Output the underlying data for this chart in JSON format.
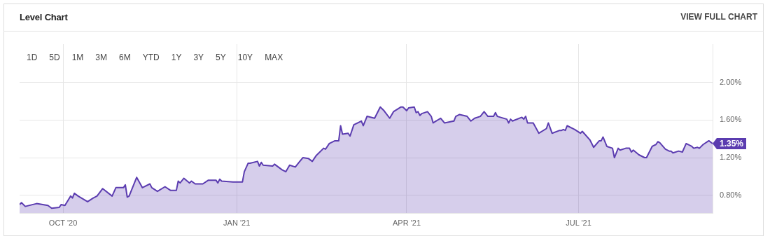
{
  "chart_data": {
    "type": "area",
    "title": "Level Chart",
    "annotations": [
      "VIEW FULL CHART",
      "1D",
      "5D",
      "1M",
      "3M",
      "6M",
      "YTD",
      "1Y",
      "3Y",
      "5Y",
      "10Y",
      "MAX",
      {
        "text": "1.35%",
        "x": "2021-09-10",
        "y": 1.35
      }
    ],
    "x": [
      "2020-09-08",
      "2020-09-09",
      "2020-09-11",
      "2020-09-17",
      "2020-09-23",
      "2020-09-25",
      "2020-09-29",
      "2020-09-30",
      "2020-10-02",
      "2020-10-05",
      "2020-10-06",
      "2020-10-07",
      "2020-10-09",
      "2020-10-14",
      "2020-10-17",
      "2020-10-19",
      "2020-10-22",
      "2020-10-27",
      "2020-10-29",
      "2020-11-02",
      "2020-11-03",
      "2020-11-04",
      "2020-11-05",
      "2020-11-09",
      "2020-11-12",
      "2020-11-16",
      "2020-11-17",
      "2020-11-20",
      "2020-11-24",
      "2020-11-27",
      "2020-11-30",
      "2020-12-01",
      "2020-12-02",
      "2020-12-04",
      "2020-12-07",
      "2020-12-08",
      "2020-12-10",
      "2020-12-14",
      "2020-12-17",
      "2020-12-21",
      "2020-12-22",
      "2020-12-23",
      "2020-12-24",
      "2020-12-30",
      "2021-01-04",
      "2021-01-05",
      "2021-01-07",
      "2021-01-08",
      "2021-01-12",
      "2021-01-13",
      "2021-01-14",
      "2021-01-15",
      "2021-01-20",
      "2021-01-21",
      "2021-01-25",
      "2021-01-27",
      "2021-01-29",
      "2021-02-01",
      "2021-02-03",
      "2021-02-05",
      "2021-02-08",
      "2021-02-10",
      "2021-02-12",
      "2021-02-16",
      "2021-02-17",
      "2021-02-19",
      "2021-02-22",
      "2021-02-24",
      "2021-02-25",
      "2021-02-26",
      "2021-03-01",
      "2021-03-02",
      "2021-03-04",
      "2021-03-08",
      "2021-03-09",
      "2021-03-11",
      "2021-03-15",
      "2021-03-18",
      "2021-03-20",
      "2021-03-23",
      "2021-03-25",
      "2021-03-29",
      "2021-03-30",
      "2021-04-01",
      "2021-04-02",
      "2021-04-05",
      "2021-04-06",
      "2021-04-07",
      "2021-04-08",
      "2021-04-09",
      "2021-04-12",
      "2021-04-14",
      "2021-04-15",
      "2021-04-19",
      "2021-04-21",
      "2021-04-26",
      "2021-04-27",
      "2021-04-29",
      "2021-05-03",
      "2021-05-05",
      "2021-05-07",
      "2021-05-10",
      "2021-05-12",
      "2021-05-14",
      "2021-05-17",
      "2021-05-18",
      "2021-05-19",
      "2021-05-24",
      "2021-05-25",
      "2021-05-26",
      "2021-05-27",
      "2021-06-01",
      "2021-06-02",
      "2021-06-03",
      "2021-06-04",
      "2021-06-07",
      "2021-06-10",
      "2021-06-14",
      "2021-06-15",
      "2021-06-17",
      "2021-06-21",
      "2021-06-22",
      "2021-06-23",
      "2021-06-24",
      "2021-06-25",
      "2021-06-29",
      "2021-07-02",
      "2021-07-03",
      "2021-07-07",
      "2021-07-09",
      "2021-07-12",
      "2021-07-13",
      "2021-07-14",
      "2021-07-16",
      "2021-07-19",
      "2021-07-20",
      "2021-07-22",
      "2021-07-23",
      "2021-07-26",
      "2021-07-28",
      "2021-07-29",
      "2021-07-30",
      "2021-08-02",
      "2021-08-05",
      "2021-08-06",
      "2021-08-09",
      "2021-08-11",
      "2021-08-12",
      "2021-08-13",
      "2021-08-16",
      "2021-08-18",
      "2021-08-19",
      "2021-08-20",
      "2021-08-23",
      "2021-08-25",
      "2021-08-27",
      "2021-08-30",
      "2021-08-31",
      "2021-09-02",
      "2021-09-03",
      "2021-09-05",
      "2021-09-08",
      "2021-09-10"
    ],
    "series": [
      {
        "color": "#5b3cb0",
        "values": [
          0.7,
          0.72,
          0.68,
          0.71,
          0.69,
          0.66,
          0.67,
          0.7,
          0.69,
          0.79,
          0.77,
          0.82,
          0.79,
          0.73,
          0.77,
          0.79,
          0.87,
          0.79,
          0.88,
          0.88,
          0.91,
          0.78,
          0.79,
          0.99,
          0.88,
          0.92,
          0.88,
          0.84,
          0.89,
          0.85,
          0.85,
          0.95,
          0.93,
          0.98,
          0.93,
          0.95,
          0.92,
          0.92,
          0.96,
          0.96,
          0.93,
          0.97,
          0.95,
          0.94,
          0.94,
          1.05,
          1.14,
          1.14,
          1.16,
          1.11,
          1.15,
          1.12,
          1.11,
          1.13,
          1.07,
          1.05,
          1.12,
          1.1,
          1.15,
          1.2,
          1.19,
          1.16,
          1.22,
          1.3,
          1.29,
          1.35,
          1.38,
          1.38,
          1.54,
          1.45,
          1.46,
          1.43,
          1.55,
          1.59,
          1.54,
          1.64,
          1.62,
          1.74,
          1.7,
          1.62,
          1.69,
          1.74,
          1.74,
          1.7,
          1.73,
          1.74,
          1.68,
          1.69,
          1.65,
          1.67,
          1.69,
          1.64,
          1.57,
          1.62,
          1.57,
          1.59,
          1.64,
          1.66,
          1.64,
          1.59,
          1.62,
          1.64,
          1.69,
          1.64,
          1.64,
          1.68,
          1.64,
          1.61,
          1.57,
          1.61,
          1.59,
          1.63,
          1.61,
          1.64,
          1.57,
          1.57,
          1.46,
          1.51,
          1.57,
          1.46,
          1.49,
          1.49,
          1.5,
          1.49,
          1.54,
          1.5,
          1.46,
          1.48,
          1.39,
          1.31,
          1.38,
          1.38,
          1.42,
          1.32,
          1.3,
          1.2,
          1.3,
          1.28,
          1.3,
          1.3,
          1.26,
          1.28,
          1.23,
          1.2,
          1.2,
          1.32,
          1.34,
          1.37,
          1.36,
          1.29,
          1.27,
          1.27,
          1.25,
          1.27,
          1.26,
          1.35,
          1.32,
          1.3,
          1.31,
          1.3,
          1.34,
          1.38,
          1.35
        ]
      }
    ],
    "xlim": [
      "2020-09-08",
      "2021-09-10"
    ],
    "xticks": [
      {
        "value": "2020-10-01",
        "label": "OCT '20"
      },
      {
        "value": "2021-01-01",
        "label": "JAN '21"
      },
      {
        "value": "2021-04-01",
        "label": "APR '21"
      },
      {
        "value": "2021-07-01",
        "label": "JUL '21"
      }
    ],
    "ylim": [
      0.61,
      2.41
    ],
    "yticks": [
      {
        "value": 0.8,
        "label": "0.80%"
      },
      {
        "value": 1.2,
        "label": "1.20%"
      },
      {
        "value": 1.6,
        "label": "1.60%"
      },
      {
        "value": 2.0,
        "label": "2.00%"
      }
    ],
    "grid": true,
    "legend": false,
    "marker": "none"
  }
}
